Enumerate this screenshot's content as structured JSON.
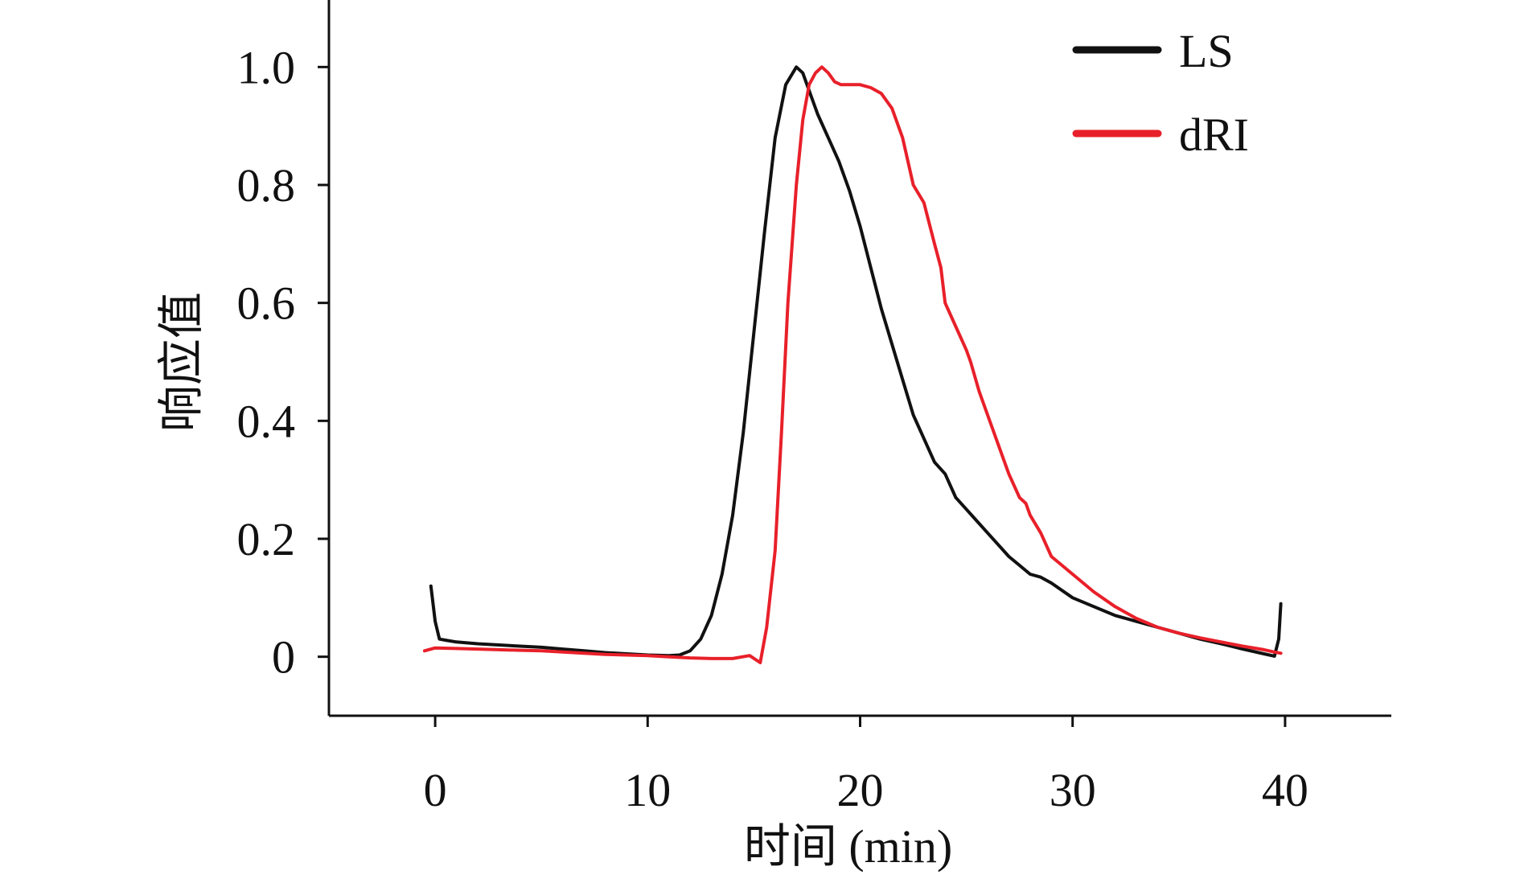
{
  "chart_data": {
    "type": "line",
    "title": "",
    "xlabel": "时间 (min)",
    "ylabel": "响应值",
    "xlim": [
      -5,
      45
    ],
    "ylim": [
      -0.1,
      1.1
    ],
    "xticks": [
      0,
      10,
      20,
      30,
      40
    ],
    "xtick_labels": [
      "0",
      "10",
      "20",
      "30",
      "40"
    ],
    "yticks": [
      0,
      0.2,
      0.4,
      0.6,
      0.8,
      1.0
    ],
    "ytick_labels": [
      "0",
      "0.2",
      "0.4",
      "0.6",
      "0.8",
      "1.0"
    ],
    "grid": false,
    "legend_position": "top-right",
    "series": [
      {
        "name": "LS",
        "color": "#111111",
        "x": [
          -0.2,
          0.0,
          0.2,
          0.5,
          1,
          2,
          3,
          4,
          5,
          6,
          7,
          8,
          9,
          10,
          11,
          11.5,
          12,
          12.5,
          13,
          13.5,
          14,
          14.5,
          15,
          15.5,
          16,
          16.5,
          17,
          17.3,
          17.6,
          18,
          18.5,
          19,
          19.5,
          20,
          20.5,
          21,
          21.5,
          22,
          22.5,
          23,
          23.5,
          24,
          24.5,
          25,
          25.5,
          26,
          26.5,
          27,
          27.5,
          28,
          28.5,
          29,
          30,
          31,
          32,
          33,
          34,
          35,
          36,
          37,
          38,
          39,
          39.5,
          39.7,
          39.8
        ],
        "y": [
          0.12,
          0.06,
          0.03,
          0.028,
          0.025,
          0.022,
          0.02,
          0.018,
          0.016,
          0.013,
          0.01,
          0.007,
          0.005,
          0.003,
          0.002,
          0.003,
          0.01,
          0.03,
          0.07,
          0.14,
          0.24,
          0.38,
          0.55,
          0.72,
          0.88,
          0.97,
          1.0,
          0.99,
          0.96,
          0.92,
          0.88,
          0.84,
          0.79,
          0.73,
          0.66,
          0.59,
          0.53,
          0.47,
          0.41,
          0.37,
          0.33,
          0.31,
          0.27,
          0.25,
          0.23,
          0.21,
          0.19,
          0.17,
          0.155,
          0.14,
          0.135,
          0.125,
          0.1,
          0.085,
          0.07,
          0.06,
          0.05,
          0.04,
          0.03,
          0.022,
          0.013,
          0.005,
          0.001,
          0.03,
          0.09
        ]
      },
      {
        "name": "dRI",
        "color": "#e8202a",
        "x": [
          -0.5,
          0,
          1,
          2,
          3,
          4,
          5,
          6,
          7,
          8,
          9,
          10,
          11,
          12,
          13,
          14,
          14.8,
          15.3,
          15.6,
          16,
          16.3,
          16.6,
          17,
          17.3,
          17.6,
          17.9,
          18.2,
          18.5,
          18.8,
          19.1,
          19.5,
          20,
          20.5,
          21,
          21.5,
          22,
          22.5,
          23,
          23.5,
          23.8,
          24,
          24.5,
          25,
          25.2,
          25.6,
          26,
          26.5,
          27,
          27.5,
          27.8,
          28,
          28.5,
          29,
          30,
          31,
          32,
          33,
          34,
          35,
          36,
          37,
          38,
          39,
          39.5,
          39.8
        ],
        "y": [
          0.01,
          0.015,
          0.014,
          0.013,
          0.012,
          0.011,
          0.01,
          0.008,
          0.006,
          0.004,
          0.003,
          0.002,
          0.0,
          -0.002,
          -0.003,
          -0.003,
          0.002,
          -0.01,
          0.05,
          0.18,
          0.38,
          0.6,
          0.8,
          0.91,
          0.97,
          0.99,
          1.0,
          0.99,
          0.975,
          0.97,
          0.97,
          0.97,
          0.965,
          0.955,
          0.93,
          0.88,
          0.8,
          0.77,
          0.7,
          0.66,
          0.6,
          0.56,
          0.52,
          0.5,
          0.45,
          0.41,
          0.36,
          0.31,
          0.27,
          0.26,
          0.24,
          0.21,
          0.17,
          0.14,
          0.11,
          0.085,
          0.065,
          0.05,
          0.04,
          0.032,
          0.025,
          0.018,
          0.012,
          0.008,
          0.006
        ]
      }
    ]
  }
}
